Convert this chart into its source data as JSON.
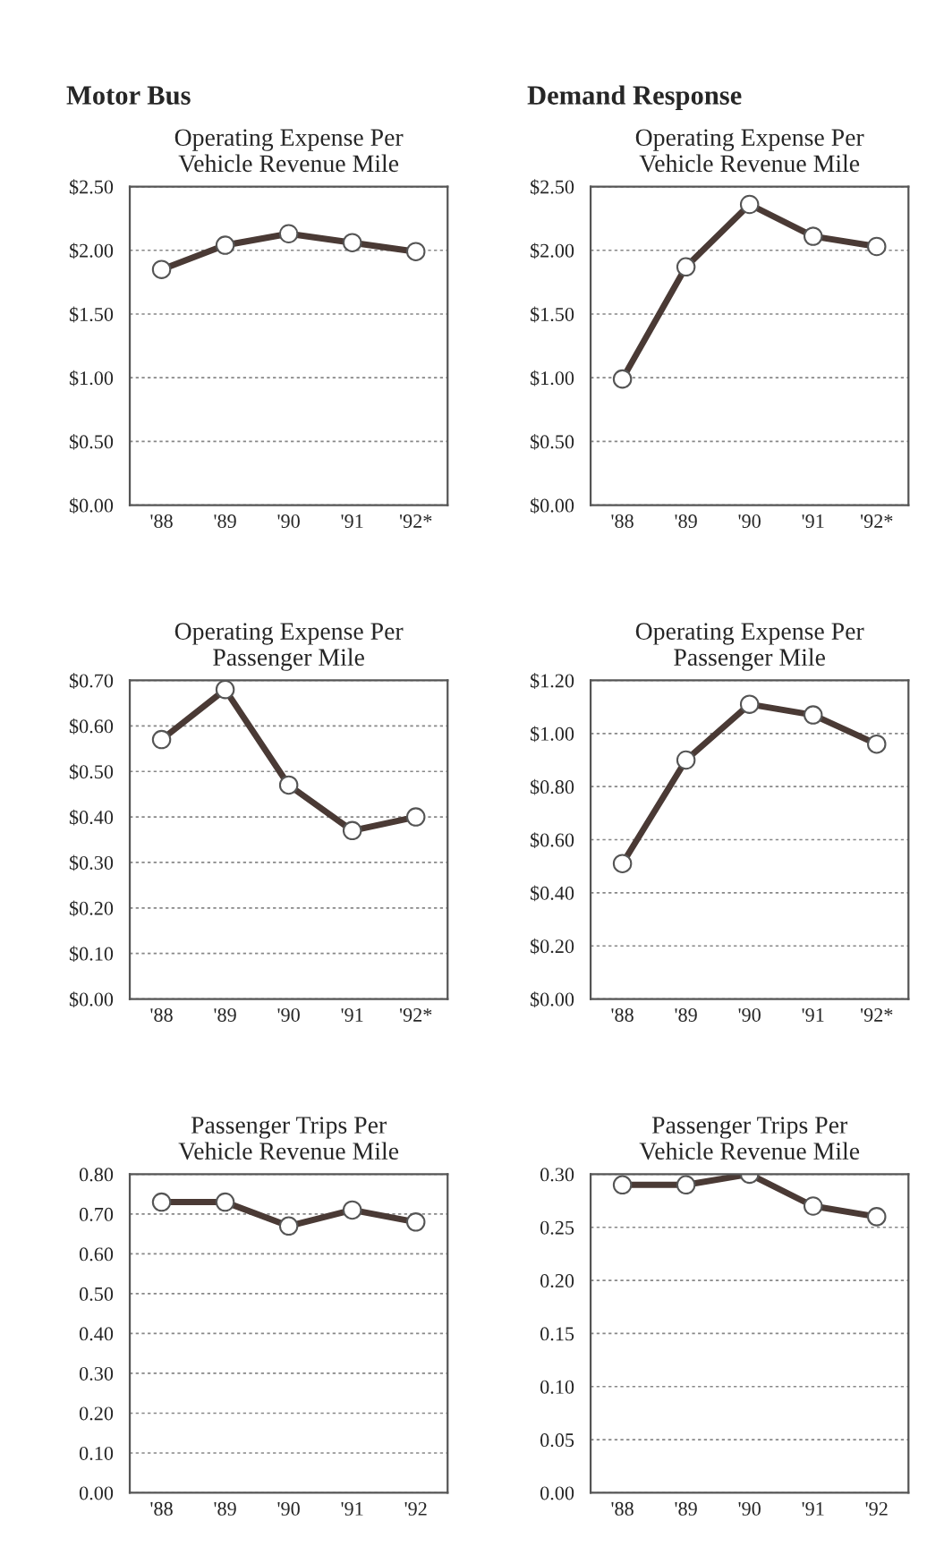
{
  "chart_data": [
    {
      "type": "line",
      "annotations": [
        "Motor Bus"
      ],
      "title": "Operating Expense Per\nVehicle Revenue Mile",
      "categories": [
        "'88",
        "'89",
        "'90",
        "'91",
        "'92*"
      ],
      "values": [
        1.85,
        2.04,
        2.13,
        2.06,
        1.99
      ],
      "color": "#4a3a35",
      "marker": "circle",
      "grid": "y",
      "ylim": [
        0,
        2.5
      ],
      "yticks": [
        {
          "value": 0,
          "label": "$0.00"
        },
        {
          "value": 0.5,
          "label": "$0.50"
        },
        {
          "value": 1,
          "label": "$1.00"
        },
        {
          "value": 1.5,
          "label": "$1.50"
        },
        {
          "value": 2,
          "label": "$2.00"
        },
        {
          "value": 2.5,
          "label": "$2.50"
        }
      ]
    },
    {
      "type": "line",
      "title": "Operating Expense Per\nPassenger Mile",
      "categories": [
        "'88",
        "'89",
        "'90",
        "'91",
        "'92*"
      ],
      "values": [
        0.57,
        0.68,
        0.47,
        0.37,
        0.4
      ],
      "color": "#4a3a35",
      "marker": "circle",
      "grid": "y",
      "ylim": [
        0,
        0.7
      ],
      "yticks": [
        {
          "value": 0,
          "label": "$0.00"
        },
        {
          "value": 0.1,
          "label": "$0.10"
        },
        {
          "value": 0.2,
          "label": "$0.20"
        },
        {
          "value": 0.3,
          "label": "$0.30"
        },
        {
          "value": 0.4,
          "label": "$0.40"
        },
        {
          "value": 0.5,
          "label": "$0.50"
        },
        {
          "value": 0.6,
          "label": "$0.60"
        },
        {
          "value": 0.7,
          "label": "$0.70"
        }
      ]
    },
    {
      "type": "line",
      "title": "Passenger Trips Per\nVehicle Revenue Mile",
      "categories": [
        "'88",
        "'89",
        "'90",
        "'91",
        "'92"
      ],
      "values": [
        0.73,
        0.73,
        0.67,
        0.71,
        0.68
      ],
      "color": "#4a3a35",
      "marker": "circle",
      "grid": "y",
      "ylim": [
        0,
        0.8
      ],
      "yticks": [
        {
          "value": 0,
          "label": "0.00"
        },
        {
          "value": 0.1,
          "label": "0.10"
        },
        {
          "value": 0.2,
          "label": "0.20"
        },
        {
          "value": 0.3,
          "label": "0.30"
        },
        {
          "value": 0.4,
          "label": "0.40"
        },
        {
          "value": 0.5,
          "label": "0.50"
        },
        {
          "value": 0.6,
          "label": "0.60"
        },
        {
          "value": 0.7,
          "label": "0.70"
        },
        {
          "value": 0.8,
          "label": "0.80"
        }
      ]
    },
    {
      "type": "line",
      "annotations": [
        "Demand Response"
      ],
      "title": "Operating Expense Per\nVehicle Revenue Mile",
      "categories": [
        "'88",
        "'89",
        "'90",
        "'91",
        "'92*"
      ],
      "values": [
        0.99,
        1.87,
        2.36,
        2.11,
        2.03
      ],
      "color": "#4a3a35",
      "marker": "circle",
      "grid": "y",
      "ylim": [
        0,
        2.5
      ],
      "yticks": [
        {
          "value": 0,
          "label": "$0.00"
        },
        {
          "value": 0.5,
          "label": "$0.50"
        },
        {
          "value": 1,
          "label": "$1.00"
        },
        {
          "value": 1.5,
          "label": "$1.50"
        },
        {
          "value": 2,
          "label": "$2.00"
        },
        {
          "value": 2.5,
          "label": "$2.50"
        }
      ]
    },
    {
      "type": "line",
      "title": "Operating Expense Per\nPassenger Mile",
      "categories": [
        "'88",
        "'89",
        "'90",
        "'91",
        "'92*"
      ],
      "values": [
        0.51,
        0.9,
        1.11,
        1.07,
        0.96
      ],
      "color": "#4a3a35",
      "marker": "circle",
      "grid": "y",
      "ylim": [
        0,
        1.2
      ],
      "yticks": [
        {
          "value": 0,
          "label": "$0.00"
        },
        {
          "value": 0.2,
          "label": "$0.20"
        },
        {
          "value": 0.4,
          "label": "$0.40"
        },
        {
          "value": 0.6,
          "label": "$0.60"
        },
        {
          "value": 0.8,
          "label": "$0.80"
        },
        {
          "value": 1,
          "label": "$1.00"
        },
        {
          "value": 1.2,
          "label": "$1.20"
        }
      ]
    },
    {
      "type": "line",
      "title": "Passenger Trips Per\nVehicle Revenue Mile",
      "categories": [
        "'88",
        "'89",
        "'90",
        "'91",
        "'92"
      ],
      "values": [
        0.29,
        0.29,
        0.3,
        0.27,
        0.26
      ],
      "color": "#4a3a35",
      "marker": "circle",
      "grid": "y",
      "ylim": [
        0,
        0.3
      ],
      "yticks": [
        {
          "value": 0,
          "label": "0.00"
        },
        {
          "value": 0.05,
          "label": "0.05"
        },
        {
          "value": 0.1,
          "label": "0.10"
        },
        {
          "value": 0.15,
          "label": "0.15"
        },
        {
          "value": 0.2,
          "label": "0.20"
        },
        {
          "value": 0.25,
          "label": "0.25"
        },
        {
          "value": 0.3,
          "label": "0.30"
        }
      ]
    }
  ]
}
